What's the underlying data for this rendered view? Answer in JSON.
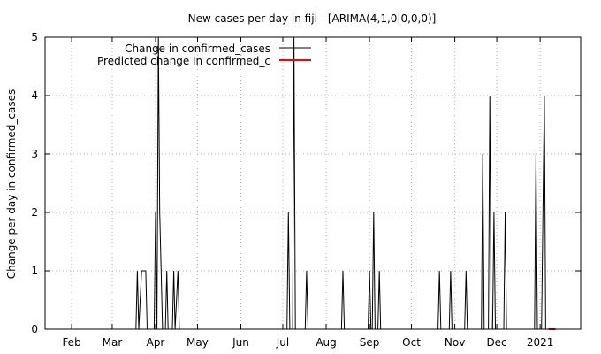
{
  "chart_data": {
    "type": "line",
    "title": "New cases per day in fiji -  [ARIMA(4,1,0|0,0,0)]",
    "xlabel": "",
    "ylabel": "Change per day in confirmed_cases",
    "ylim": [
      0,
      5
    ],
    "xlim": [
      "2020-01-13",
      "2021-01-30"
    ],
    "x_ticks": [
      {
        "label": "Feb",
        "date": "2020-02-01"
      },
      {
        "label": "Mar",
        "date": "2020-03-01"
      },
      {
        "label": "Apr",
        "date": "2020-04-01"
      },
      {
        "label": "May",
        "date": "2020-05-01"
      },
      {
        "label": "Jun",
        "date": "2020-06-01"
      },
      {
        "label": "Jul",
        "date": "2020-07-01"
      },
      {
        "label": "Aug",
        "date": "2020-08-01"
      },
      {
        "label": "Sep",
        "date": "2020-09-01"
      },
      {
        "label": "Oct",
        "date": "2020-10-01"
      },
      {
        "label": "Nov",
        "date": "2020-11-01"
      },
      {
        "label": "Dec",
        "date": "2020-12-01"
      },
      {
        "label": "2021",
        "date": "2021-01-01"
      }
    ],
    "y_ticks": [
      0,
      1,
      2,
      3,
      4,
      5
    ],
    "grid": true,
    "legend_position": "top-left",
    "series": [
      {
        "name": "Change in confirmed_cases",
        "color": "#000000",
        "points": [
          {
            "x": "2020-01-13",
            "y": 0
          },
          {
            "x": "2020-03-18",
            "y": 0
          },
          {
            "x": "2020-03-19",
            "y": 1
          },
          {
            "x": "2020-03-20",
            "y": 0
          },
          {
            "x": "2020-03-22",
            "y": 1
          },
          {
            "x": "2020-03-25",
            "y": 1
          },
          {
            "x": "2020-03-26",
            "y": 0
          },
          {
            "x": "2020-03-31",
            "y": 0
          },
          {
            "x": "2020-04-01",
            "y": 2
          },
          {
            "x": "2020-04-02",
            "y": 0
          },
          {
            "x": "2020-04-03",
            "y": 5
          },
          {
            "x": "2020-04-04",
            "y": 2
          },
          {
            "x": "2020-04-05",
            "y": 1
          },
          {
            "x": "2020-04-06",
            "y": 0
          },
          {
            "x": "2020-04-08",
            "y": 0
          },
          {
            "x": "2020-04-09",
            "y": 1
          },
          {
            "x": "2020-04-10",
            "y": 0
          },
          {
            "x": "2020-04-13",
            "y": 0
          },
          {
            "x": "2020-04-14",
            "y": 1
          },
          {
            "x": "2020-04-15",
            "y": 0
          },
          {
            "x": "2020-04-17",
            "y": 1
          },
          {
            "x": "2020-04-18",
            "y": 0
          },
          {
            "x": "2020-07-04",
            "y": 0
          },
          {
            "x": "2020-07-05",
            "y": 2
          },
          {
            "x": "2020-07-06",
            "y": 0
          },
          {
            "x": "2020-07-08",
            "y": 0
          },
          {
            "x": "2020-07-09",
            "y": 5
          },
          {
            "x": "2020-07-10",
            "y": 0
          },
          {
            "x": "2020-07-17",
            "y": 0
          },
          {
            "x": "2020-07-18",
            "y": 1
          },
          {
            "x": "2020-07-19",
            "y": 0
          },
          {
            "x": "2020-08-12",
            "y": 0
          },
          {
            "x": "2020-08-13",
            "y": 1
          },
          {
            "x": "2020-08-14",
            "y": 0
          },
          {
            "x": "2020-08-31",
            "y": 0
          },
          {
            "x": "2020-09-01",
            "y": 1
          },
          {
            "x": "2020-09-02",
            "y": 0
          },
          {
            "x": "2020-09-03",
            "y": 0
          },
          {
            "x": "2020-09-04",
            "y": 2
          },
          {
            "x": "2020-09-05",
            "y": 0
          },
          {
            "x": "2020-09-07",
            "y": 0
          },
          {
            "x": "2020-09-08",
            "y": 1
          },
          {
            "x": "2020-09-09",
            "y": 0
          },
          {
            "x": "2020-10-20",
            "y": 0
          },
          {
            "x": "2020-10-21",
            "y": 1
          },
          {
            "x": "2020-10-22",
            "y": 0
          },
          {
            "x": "2020-10-28",
            "y": 0
          },
          {
            "x": "2020-10-29",
            "y": 1
          },
          {
            "x": "2020-10-30",
            "y": 0
          },
          {
            "x": "2020-11-08",
            "y": 0
          },
          {
            "x": "2020-11-09",
            "y": 1
          },
          {
            "x": "2020-11-10",
            "y": 0
          },
          {
            "x": "2020-11-20",
            "y": 0
          },
          {
            "x": "2020-11-21",
            "y": 3
          },
          {
            "x": "2020-11-22",
            "y": 0
          },
          {
            "x": "2020-11-25",
            "y": 0
          },
          {
            "x": "2020-11-26",
            "y": 4
          },
          {
            "x": "2020-11-27",
            "y": 0
          },
          {
            "x": "2020-11-28",
            "y": 0
          },
          {
            "x": "2020-11-29",
            "y": 2
          },
          {
            "x": "2020-11-30",
            "y": 0
          },
          {
            "x": "2020-12-06",
            "y": 0
          },
          {
            "x": "2020-12-07",
            "y": 2
          },
          {
            "x": "2020-12-08",
            "y": 0
          },
          {
            "x": "2020-12-28",
            "y": 0
          },
          {
            "x": "2020-12-29",
            "y": 3
          },
          {
            "x": "2020-12-30",
            "y": 0
          },
          {
            "x": "2021-01-02",
            "y": 0
          },
          {
            "x": "2021-01-04",
            "y": 4
          },
          {
            "x": "2021-01-05",
            "y": 0
          },
          {
            "x": "2021-01-07",
            "y": 0
          }
        ]
      },
      {
        "name": "Predicted change in confirmed_c",
        "color": "#ff0000",
        "points": [
          {
            "x": "2021-01-07",
            "y": 0
          },
          {
            "x": "2021-01-12",
            "y": 0
          }
        ]
      }
    ]
  }
}
